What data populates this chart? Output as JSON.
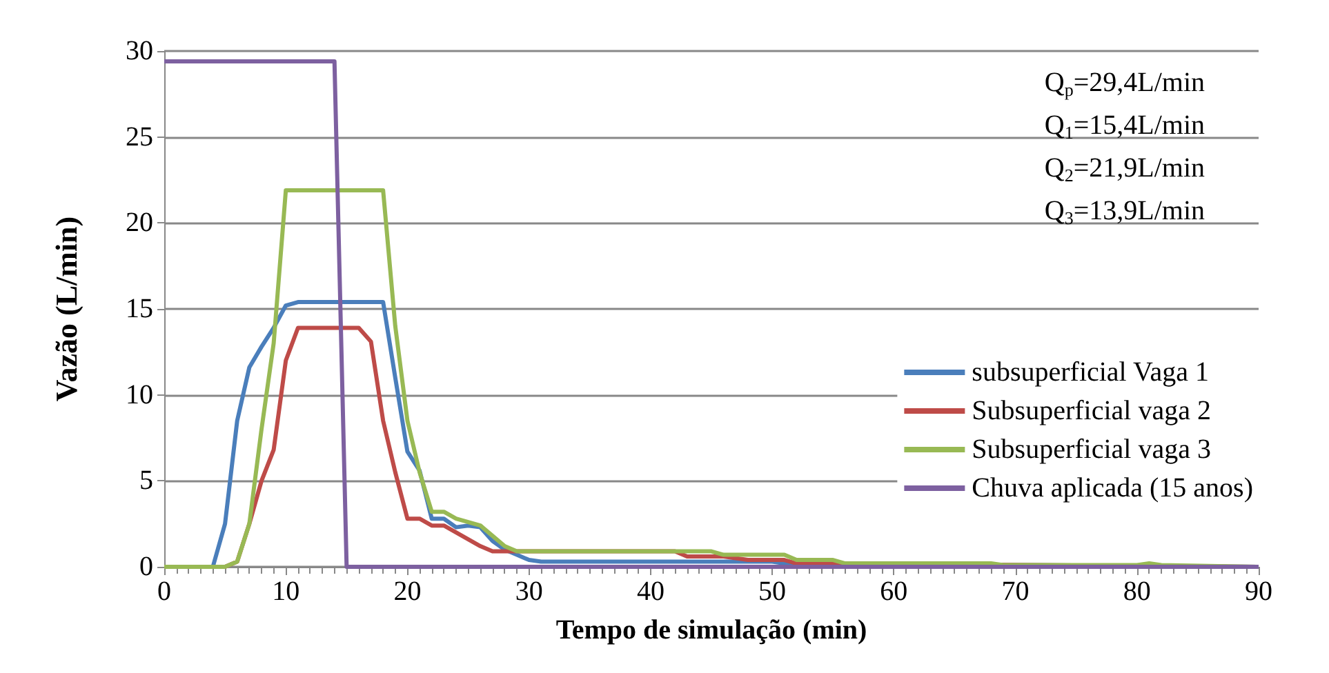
{
  "chart_data": {
    "type": "line",
    "xlabel": "Tempo de simulação (min)",
    "ylabel": "Vazão (L/min)",
    "xlim": [
      0,
      90
    ],
    "xticks": [
      0,
      10,
      20,
      30,
      40,
      50,
      60,
      70,
      80,
      90
    ],
    "ylim": [
      0,
      30
    ],
    "yticks": [
      0,
      5,
      10,
      15,
      20,
      25,
      30
    ],
    "grid": "y",
    "legend": "right",
    "marker": "none",
    "line_style": "solid",
    "annotations": [
      "Q$_{p}$=29,4L/min",
      "Q$_{1}$=15,4L/min",
      "Q$_{2}$=21,9L/min",
      "Q$_{3}$=13,9L/min"
    ],
    "series": [
      {
        "name": "subsuperficial Vaga 1",
        "color": "#4a7ebb",
        "x": [
          0,
          4,
          5,
          6,
          7,
          8,
          9,
          10,
          11,
          18,
          19,
          20,
          21,
          22,
          23,
          24,
          25,
          26,
          27,
          28,
          29,
          30,
          31,
          50,
          51,
          90
        ],
        "values": [
          0,
          0,
          2.5,
          8.5,
          11.6,
          12.8,
          13.9,
          15.2,
          15.4,
          15.4,
          11,
          6.7,
          5.6,
          2.8,
          2.8,
          2.3,
          2.4,
          2.3,
          1.5,
          1,
          0.7,
          0.4,
          0.3,
          0.3,
          0.2,
          0
        ]
      },
      {
        "name": "Subsuperficial vaga 2",
        "color": "#be4b48",
        "x": [
          0,
          5,
          6,
          7,
          8,
          9,
          10,
          11,
          16,
          17,
          18,
          19,
          20,
          21,
          22,
          23,
          24,
          25,
          26,
          27,
          42,
          43,
          46,
          48,
          51,
          52,
          90
        ],
        "values": [
          0,
          0,
          0.3,
          2.5,
          5,
          6.8,
          12,
          13.9,
          13.9,
          13.1,
          8.5,
          5.5,
          2.8,
          2.8,
          2.4,
          2.4,
          2,
          1.6,
          1.2,
          0.9,
          0.9,
          0.6,
          0.6,
          0.4,
          0.4,
          0.2,
          0
        ]
      },
      {
        "name": "Subsuperficial vaga 3",
        "color": "#98b954",
        "x": [
          0,
          5,
          6,
          7,
          8,
          9,
          10,
          18,
          19,
          20,
          21,
          22,
          23,
          24,
          25,
          26,
          27,
          28,
          29,
          45,
          46,
          51,
          52,
          55,
          56,
          68,
          69,
          80,
          81,
          82,
          90
        ],
        "values": [
          0,
          0,
          0.3,
          2.5,
          8,
          13,
          21.9,
          21.9,
          14,
          8.5,
          5.5,
          3.2,
          3.2,
          2.8,
          2.6,
          2.4,
          1.8,
          1.2,
          0.9,
          0.9,
          0.7,
          0.7,
          0.4,
          0.4,
          0.2,
          0.2,
          0.1,
          0.1,
          0.2,
          0.1,
          0
        ]
      },
      {
        "name": "Chuva aplicada (15 anos)",
        "color": "#7d60a0",
        "x": [
          0,
          14,
          15,
          90
        ],
        "values": [
          29.4,
          29.4,
          0,
          0
        ]
      }
    ]
  }
}
